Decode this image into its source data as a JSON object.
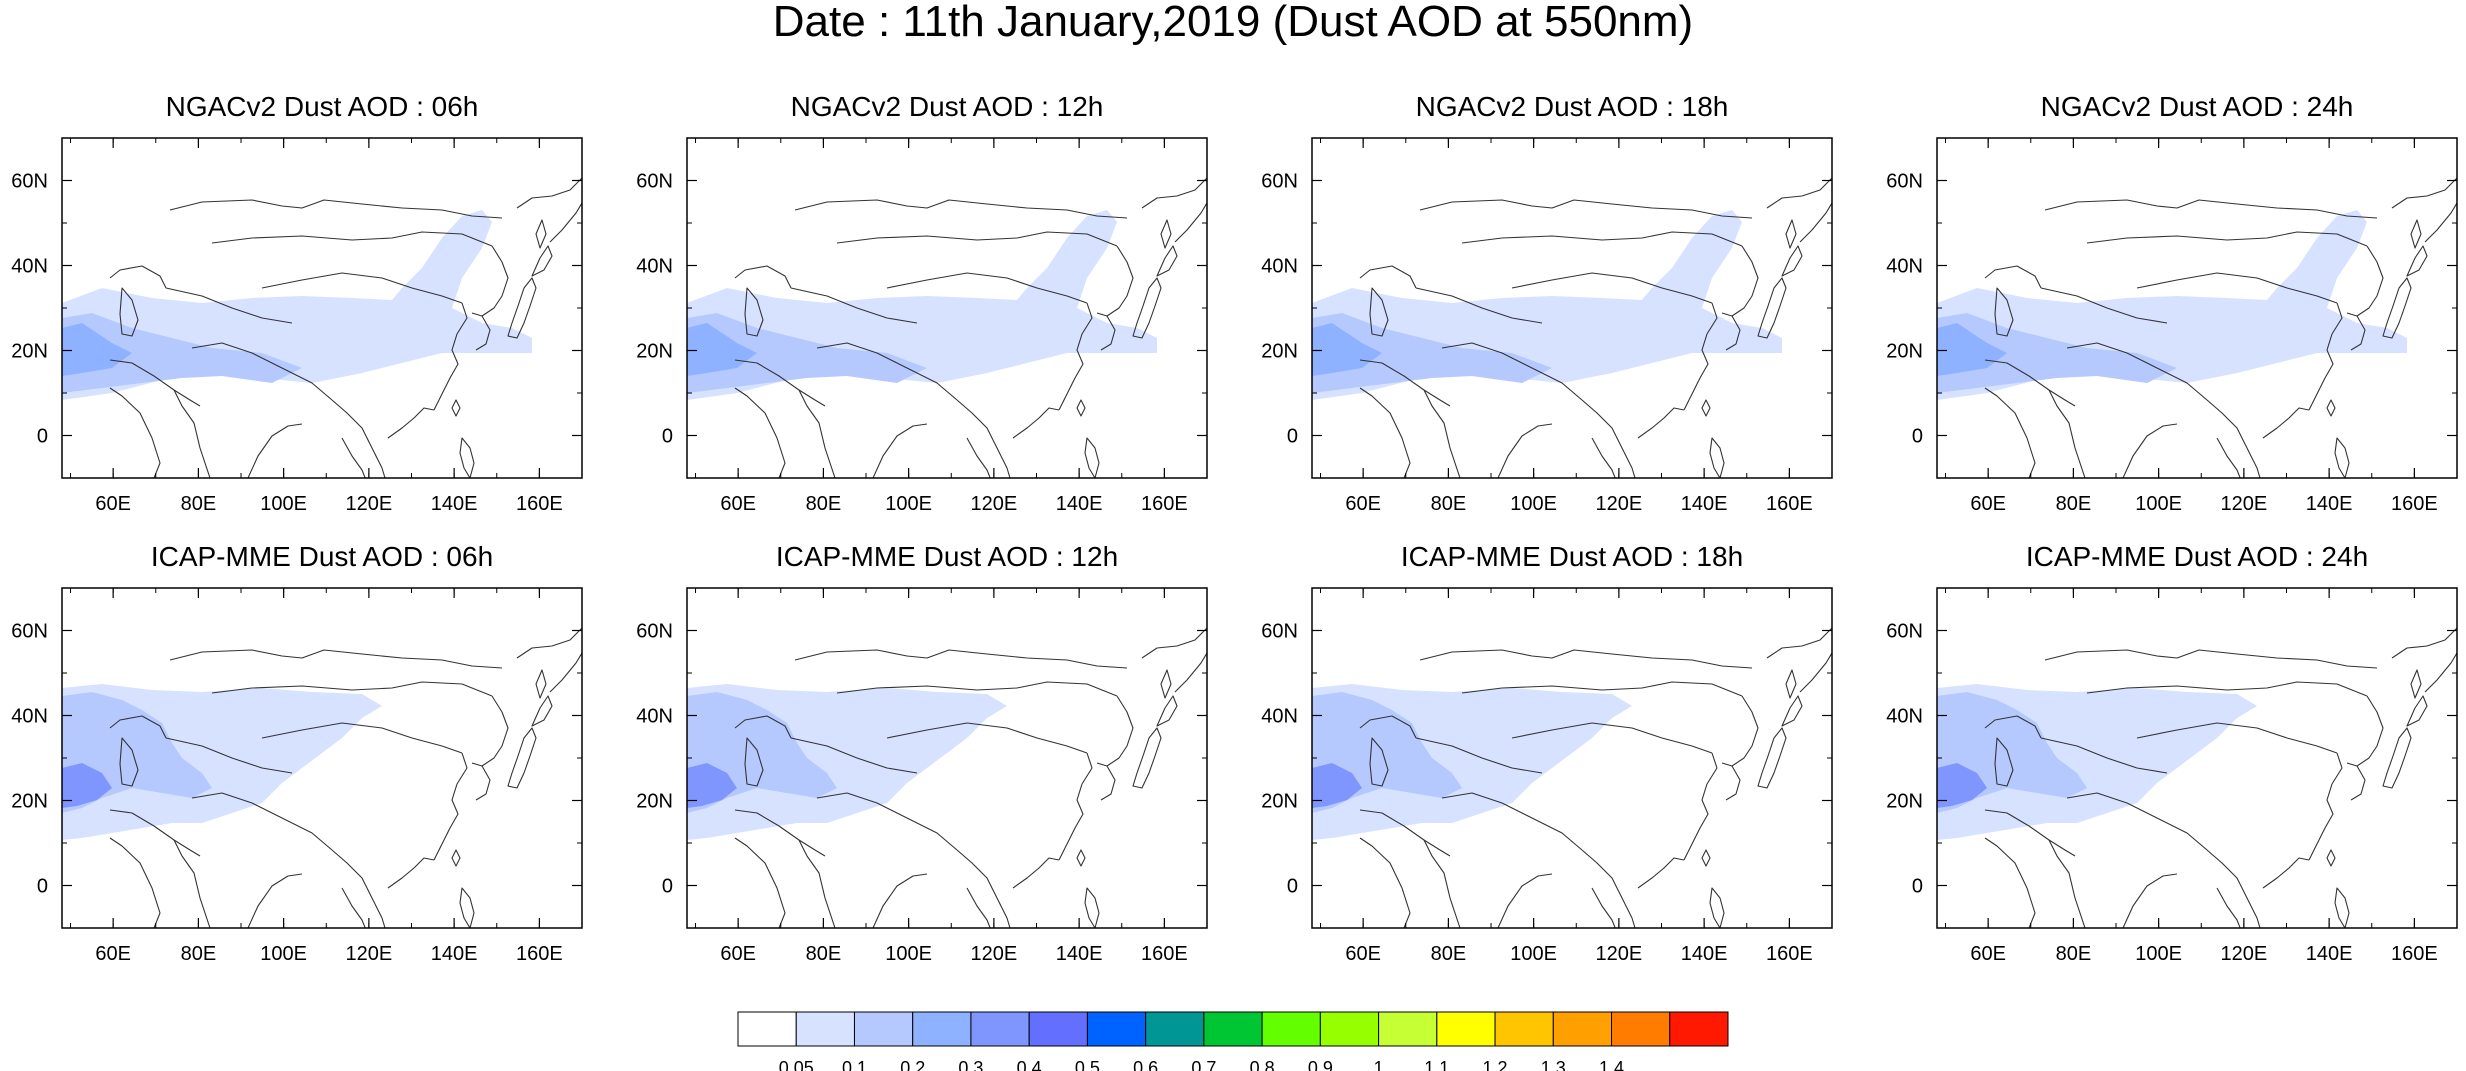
{
  "title": "Date : 11th January,2019 (Dust AOD at 550nm)",
  "panels": [
    {
      "title": "NGACv2 Dust AOD : 06h",
      "model": "NGACv2",
      "hour": "06h"
    },
    {
      "title": "NGACv2 Dust AOD : 12h",
      "model": "NGACv2",
      "hour": "12h"
    },
    {
      "title": "NGACv2 Dust AOD : 18h",
      "model": "NGACv2",
      "hour": "18h"
    },
    {
      "title": "NGACv2 Dust AOD : 24h",
      "model": "NGACv2",
      "hour": "24h"
    },
    {
      "title": "ICAP-MME Dust AOD : 06h",
      "model": "ICAP-MME",
      "hour": "06h"
    },
    {
      "title": "ICAP-MME Dust AOD : 12h",
      "model": "ICAP-MME",
      "hour": "12h"
    },
    {
      "title": "ICAP-MME Dust AOD : 18h",
      "model": "ICAP-MME",
      "hour": "18h"
    },
    {
      "title": "ICAP-MME Dust AOD : 24h",
      "model": "ICAP-MME",
      "hour": "24h"
    }
  ],
  "map_extent": {
    "lon_min": 48,
    "lon_max": 170,
    "lat_min": -10,
    "lat_max": 70
  },
  "lon_ticks": {
    "values": [
      60,
      80,
      100,
      120,
      140,
      160
    ],
    "labels": [
      "60E",
      "80E",
      "100E",
      "120E",
      "140E",
      "160E"
    ]
  },
  "lat_ticks": {
    "values": [
      0,
      20,
      40,
      60
    ],
    "labels": [
      "0",
      "20N",
      "40N",
      "60N"
    ]
  },
  "colorbar": {
    "labels": [
      "0.05",
      "0.1",
      "0.2",
      "0.3",
      "0.4",
      "0.5",
      "0.6",
      "0.7",
      "0.8",
      "0.9",
      "1",
      "1.1",
      "1.2",
      "1.3",
      "1.4"
    ],
    "colors": [
      "#ffffff",
      "#d6e2ff",
      "#b5c9ff",
      "#8eb2ff",
      "#7f96ff",
      "#6370ff",
      "#0063ff",
      "#009696",
      "#00c633",
      "#63ff00",
      "#96ff00",
      "#c6ff33",
      "#ffff00",
      "#ffc600",
      "#ffa000",
      "#ff7c00",
      "#ff1900"
    ]
  }
}
